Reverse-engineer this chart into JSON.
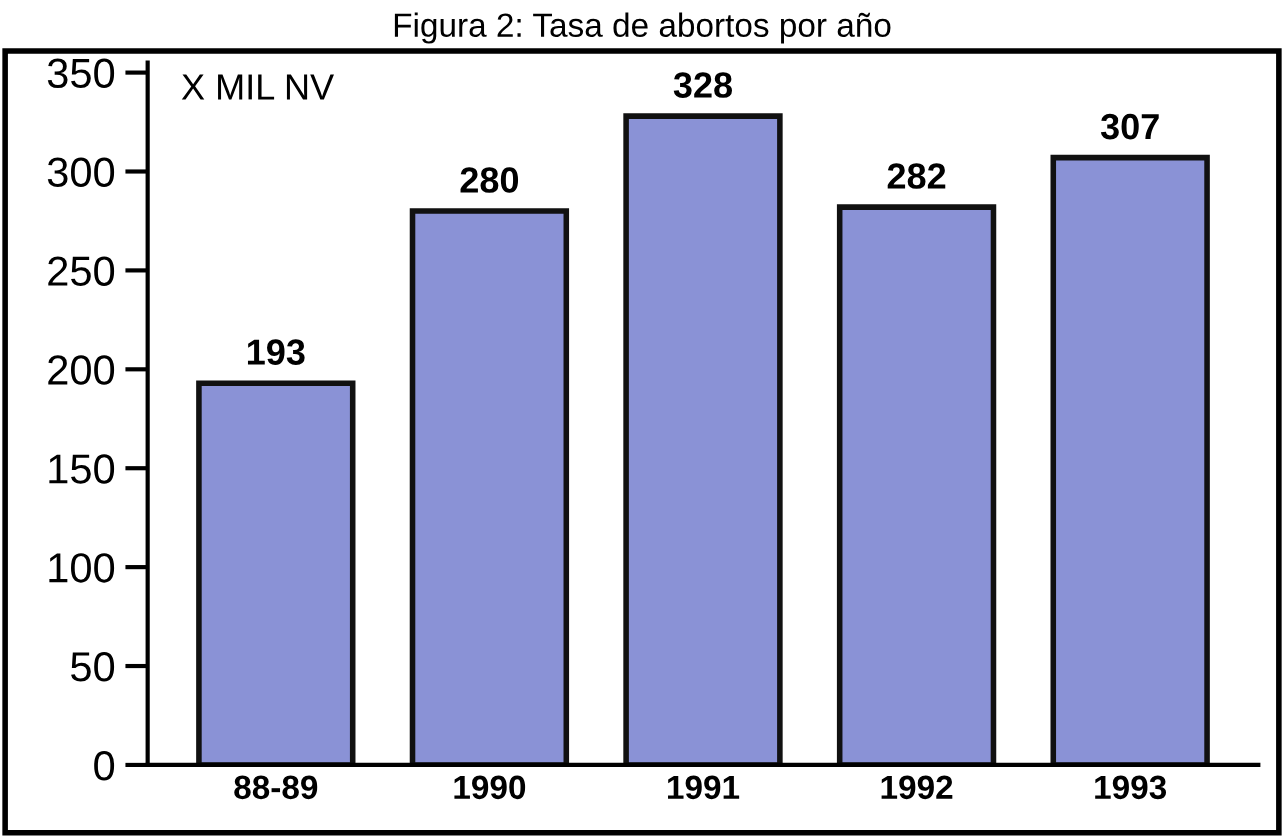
{
  "chart_data": {
    "type": "bar",
    "title": "Figura 2: Tasa de abortos por año",
    "categories": [
      "88-89",
      "1990",
      "1991",
      "1992",
      "1993"
    ],
    "values": [
      193,
      280,
      328,
      282,
      307
    ],
    "color": "#8a92d6",
    "ylim": [
      0,
      355
    ],
    "yticks": [
      0,
      50,
      100,
      150,
      200,
      250,
      300,
      350
    ],
    "annotations": [
      "X MIL NV"
    ],
    "data_labels": true,
    "grid": false
  }
}
